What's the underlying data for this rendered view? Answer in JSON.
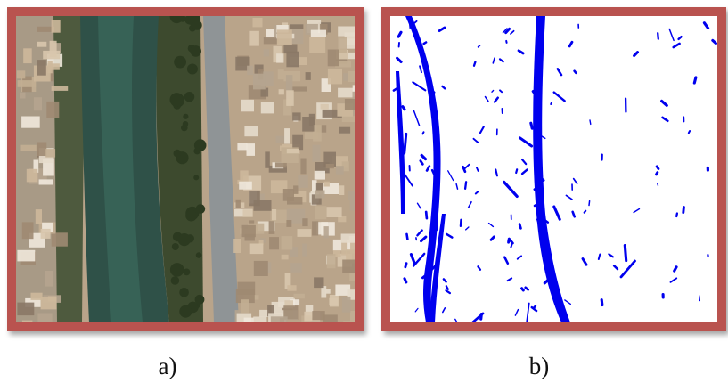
{
  "panels": [
    {
      "label": "a)"
    },
    {
      "label": "b)"
    }
  ]
}
